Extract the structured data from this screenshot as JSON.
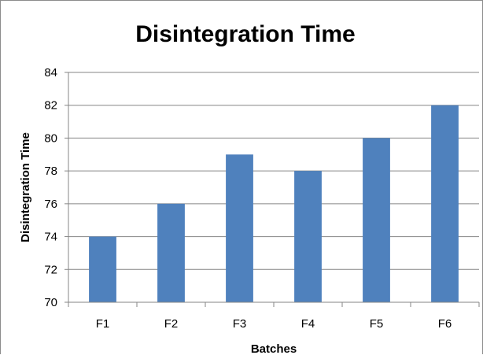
{
  "chart_data": {
    "type": "bar",
    "title": "Disintegration Time",
    "xlabel": "Batches",
    "ylabel": "Disintegration Time",
    "categories": [
      "F1",
      "F2",
      "F3",
      "F4",
      "F5",
      "F6"
    ],
    "values": [
      74,
      76,
      79,
      78,
      80,
      82
    ],
    "ylim": [
      70,
      84
    ],
    "yticks": [
      70,
      72,
      74,
      76,
      78,
      80,
      82,
      84
    ],
    "grid": true,
    "legend": "none",
    "bar_color": "#4f81bd"
  }
}
